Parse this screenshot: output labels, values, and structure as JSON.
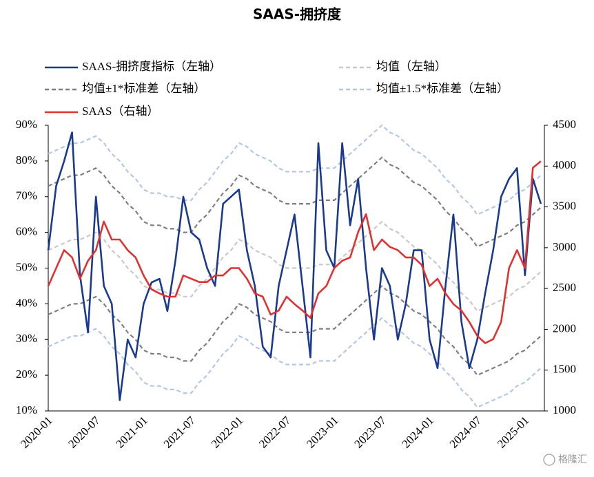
{
  "chart_data": {
    "type": "line",
    "title": "SAAS-拥挤度",
    "watermark": "格隆汇",
    "categories": [
      "2020-01",
      null,
      null,
      null,
      null,
      null,
      "2020-07",
      null,
      null,
      null,
      null,
      null,
      "2021-01",
      null,
      null,
      null,
      null,
      null,
      "2021-07",
      null,
      null,
      null,
      null,
      null,
      "2022-01",
      null,
      null,
      null,
      null,
      null,
      "2022-07",
      null,
      null,
      null,
      null,
      null,
      "2023-01",
      null,
      null,
      null,
      null,
      null,
      "2023-07",
      null,
      null,
      null,
      null,
      null,
      "2024-01",
      null,
      null,
      null,
      null,
      null,
      "2024-07",
      null,
      null,
      null,
      null,
      null,
      "2025-01",
      null,
      null
    ],
    "ylim": [
      10,
      90
    ],
    "yticks": [
      {
        "value": 10,
        "label": "10%"
      },
      {
        "value": 20,
        "label": "20%"
      },
      {
        "value": 30,
        "label": "30%"
      },
      {
        "value": 40,
        "label": "40%"
      },
      {
        "value": 50,
        "label": "50%"
      },
      {
        "value": 60,
        "label": "60%"
      },
      {
        "value": 70,
        "label": "70%"
      },
      {
        "value": 80,
        "label": "80%"
      },
      {
        "value": 90,
        "label": "90%"
      }
    ],
    "y2lim": [
      1000,
      4500
    ],
    "y2ticks": [
      1000,
      1500,
      2000,
      2500,
      3000,
      3500,
      4000,
      4500
    ],
    "series": [
      {
        "name": "SAAS-拥挤度指标（左轴）",
        "color": "#1a3a8f",
        "dashed": false,
        "values": [
          55,
          73,
          80,
          88,
          48,
          32,
          70,
          45,
          40,
          13,
          30,
          25,
          40,
          46,
          47,
          38,
          52,
          70,
          60,
          58,
          50,
          45,
          68,
          70,
          72,
          55,
          45,
          28,
          25,
          45,
          55,
          65,
          45,
          25,
          85,
          55,
          50,
          85,
          62,
          75,
          50,
          30,
          50,
          45,
          30,
          40,
          55,
          55,
          30,
          22,
          45,
          65,
          35,
          22,
          30,
          43,
          55,
          70,
          75,
          78,
          48,
          75,
          68
        ]
      },
      {
        "name": "均值（左轴）",
        "color": "#c9c9c9",
        "dashed": true,
        "values": [
          55,
          56,
          57,
          58,
          58,
          59,
          60,
          58,
          55,
          53,
          50,
          48,
          45,
          44,
          44,
          43,
          43,
          42,
          42,
          45,
          47,
          50,
          53,
          55,
          58,
          57,
          55,
          54,
          53,
          51,
          50,
          50,
          50,
          50,
          51,
          51,
          51,
          53,
          55,
          57,
          59,
          61,
          63,
          61,
          60,
          58,
          56,
          55,
          53,
          51,
          48,
          46,
          43,
          41,
          38,
          39,
          40,
          41,
          42,
          44,
          45,
          47,
          49
        ]
      },
      {
        "name": "均值±1*标准差（左轴）",
        "color": "#7f7f7f",
        "dashed": true,
        "upper": [
          73,
          74,
          75,
          76,
          76,
          77,
          78,
          76,
          73,
          71,
          68,
          66,
          63,
          62,
          62,
          61,
          61,
          60,
          60,
          63,
          65,
          68,
          71,
          73,
          76,
          75,
          73,
          72,
          71,
          69,
          68,
          68,
          68,
          68,
          69,
          69,
          69,
          71,
          73,
          75,
          77,
          79,
          81,
          79,
          78,
          76,
          74,
          73,
          71,
          69,
          66,
          64,
          61,
          59,
          56,
          57,
          58,
          59,
          60,
          62,
          63,
          65,
          67
        ],
        "lower": [
          37,
          38,
          39,
          40,
          40,
          41,
          42,
          40,
          37,
          35,
          32,
          30,
          27,
          26,
          26,
          25,
          25,
          24,
          24,
          27,
          29,
          32,
          35,
          37,
          40,
          39,
          37,
          36,
          35,
          33,
          32,
          32,
          32,
          32,
          33,
          33,
          33,
          35,
          37,
          39,
          41,
          43,
          45,
          43,
          42,
          40,
          38,
          37,
          35,
          33,
          30,
          28,
          25,
          23,
          20,
          21,
          22,
          23,
          24,
          26,
          27,
          29,
          31
        ]
      },
      {
        "name": "均值±1.5*标准差（左轴）",
        "color": "#b4c7e7",
        "dashed": true,
        "upper": [
          82,
          83,
          84,
          85,
          85,
          86,
          87,
          85,
          82,
          80,
          77,
          75,
          72,
          71,
          71,
          70,
          70,
          69,
          69,
          72,
          74,
          77,
          80,
          82,
          85,
          84,
          82,
          81,
          80,
          78,
          77,
          77,
          77,
          77,
          78,
          78,
          78,
          80,
          82,
          84,
          86,
          88,
          90,
          88,
          87,
          85,
          83,
          82,
          80,
          78,
          75,
          73,
          70,
          68,
          65,
          66,
          67,
          68,
          69,
          71,
          72,
          74,
          76
        ],
        "lower": [
          28,
          29,
          30,
          31,
          31,
          32,
          33,
          31,
          28,
          26,
          23,
          21,
          18,
          17,
          17,
          16,
          16,
          15,
          15,
          18,
          20,
          23,
          26,
          28,
          31,
          30,
          28,
          27,
          26,
          24,
          23,
          23,
          23,
          23,
          24,
          24,
          24,
          26,
          28,
          30,
          32,
          34,
          36,
          34,
          33,
          31,
          29,
          28,
          26,
          24,
          21,
          19,
          16,
          14,
          11,
          12,
          13,
          14,
          15,
          17,
          18,
          20,
          22
        ]
      },
      {
        "name": "SAAS（右轴）",
        "color": "#e03131",
        "dashed": false,
        "axis": "y2",
        "values": [
          2530,
          2750,
          2970,
          2880,
          2620,
          2840,
          2970,
          3320,
          3100,
          3100,
          2970,
          2880,
          2660,
          2490,
          2440,
          2400,
          2400,
          2660,
          2620,
          2580,
          2580,
          2660,
          2660,
          2750,
          2750,
          2620,
          2440,
          2400,
          2180,
          2230,
          2400,
          2310,
          2230,
          2140,
          2440,
          2530,
          2750,
          2840,
          2880,
          3190,
          3410,
          2970,
          3100,
          3010,
          2970,
          2880,
          2880,
          2790,
          2530,
          2620,
          2440,
          2310,
          2230,
          2090,
          1920,
          1830,
          1880,
          2090,
          2750,
          2970,
          2750,
          3980,
          4060
        ]
      }
    ]
  }
}
